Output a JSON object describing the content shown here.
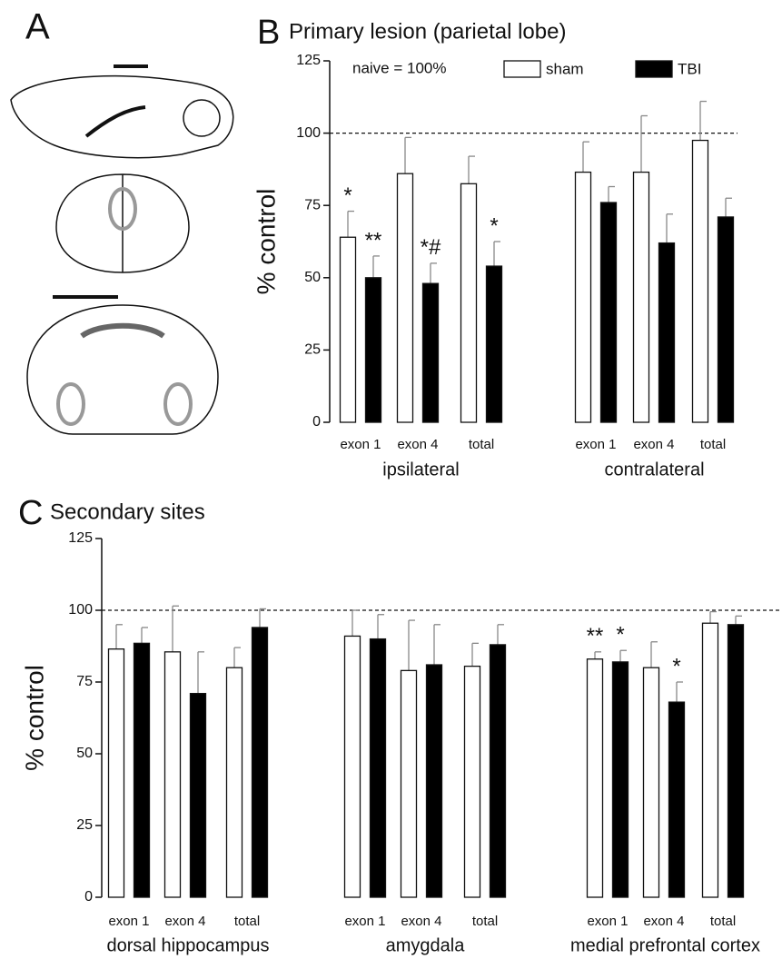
{
  "panel_a": {
    "label": "A"
  },
  "chart_data": [
    {
      "type": "bar",
      "panel": "B",
      "title": "Primary lesion (parietal lobe)",
      "y_label": "% control",
      "note": "naive = 100%",
      "categories": [
        "exon 1",
        "exon 4",
        "total",
        "exon 1",
        "exon 4",
        "total"
      ],
      "groups": [
        "ipsilateral",
        "contralateral"
      ],
      "ylim": [
        0,
        125
      ],
      "yticks": [
        0,
        25,
        50,
        75,
        100,
        125
      ],
      "reference_line": 100,
      "series": [
        {
          "name": "sham",
          "color": "#ffffff",
          "values": [
            64,
            86,
            82.5,
            86.5,
            86.5,
            97.5
          ],
          "errors": [
            9,
            12.5,
            9.5,
            10.5,
            19.5,
            13.5
          ],
          "annotations": [
            "*",
            null,
            null,
            null,
            null,
            null
          ]
        },
        {
          "name": "TBI",
          "color": "#000000",
          "values": [
            50,
            48,
            54,
            76,
            62,
            71
          ],
          "errors": [
            7.5,
            7,
            8.5,
            5.5,
            10,
            6.5
          ],
          "annotations": [
            "**",
            "*#",
            "*",
            null,
            null,
            null
          ]
        }
      ]
    },
    {
      "type": "bar",
      "panel": "C",
      "title": "Secondary sites",
      "y_label": "% control",
      "categories": [
        "exon 1",
        "exon 4",
        "total",
        "exon 1",
        "exon 4",
        "total",
        "exon 1",
        "exon 4",
        "total"
      ],
      "groups": [
        "dorsal hippocampus",
        "amygdala",
        "medial prefrontal cortex"
      ],
      "ylim": [
        0,
        125
      ],
      "yticks": [
        0,
        25,
        50,
        75,
        100,
        125
      ],
      "reference_line": 100,
      "series": [
        {
          "name": "sham",
          "color": "#ffffff",
          "values": [
            86.5,
            85.5,
            80,
            91,
            79,
            80.5,
            83,
            80,
            95.5
          ],
          "errors": [
            8.5,
            16,
            7,
            9,
            17.5,
            8,
            2.5,
            9,
            4
          ],
          "annotations": [
            null,
            null,
            null,
            null,
            null,
            null,
            "**",
            null,
            null
          ]
        },
        {
          "name": "TBI",
          "color": "#000000",
          "values": [
            88.5,
            71,
            94,
            90,
            81,
            88,
            82,
            68,
            95
          ],
          "errors": [
            5.5,
            14.5,
            6.5,
            8.5,
            14,
            7,
            4,
            7,
            3
          ],
          "annotations": [
            null,
            null,
            null,
            null,
            null,
            null,
            "*",
            "*",
            null
          ]
        }
      ]
    }
  ]
}
